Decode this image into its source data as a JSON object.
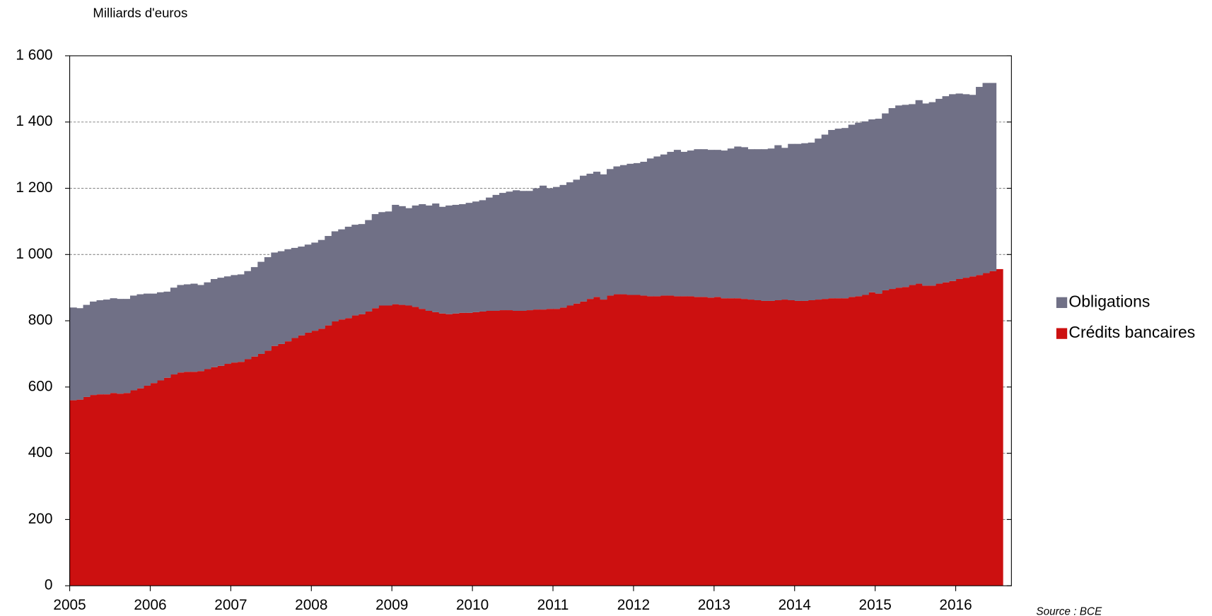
{
  "chart_data": {
    "type": "stacked-area",
    "y_label": "Milliards d'euros",
    "source": "Source : BCE",
    "legend": "right",
    "grid": true,
    "ylim": [
      0,
      1600
    ],
    "yticks": [
      0,
      200,
      400,
      600,
      800,
      {
        "value": 1000,
        "label": "1 000"
      },
      {
        "value": 1200,
        "label": "1 200"
      },
      {
        "value": 1400,
        "label": "1 400"
      },
      {
        "value": 1600,
        "label": "1 600"
      }
    ],
    "categories": [
      "2005",
      null,
      null,
      null,
      null,
      null,
      null,
      null,
      null,
      null,
      null,
      null,
      "2006",
      null,
      null,
      null,
      null,
      null,
      null,
      null,
      null,
      null,
      null,
      null,
      "2007",
      null,
      null,
      null,
      null,
      null,
      null,
      null,
      null,
      null,
      null,
      null,
      "2008",
      null,
      null,
      null,
      null,
      null,
      null,
      null,
      null,
      null,
      null,
      null,
      "2009",
      null,
      null,
      null,
      null,
      null,
      null,
      null,
      null,
      null,
      null,
      null,
      "2010",
      null,
      null,
      null,
      null,
      null,
      null,
      null,
      null,
      null,
      null,
      null,
      "2011",
      null,
      null,
      null,
      null,
      null,
      null,
      null,
      null,
      null,
      null,
      null,
      "2012",
      null,
      null,
      null,
      null,
      null,
      null,
      null,
      null,
      null,
      null,
      null,
      "2013",
      null,
      null,
      null,
      null,
      null,
      null,
      null,
      null,
      null,
      null,
      null,
      "2014",
      null,
      null,
      null,
      null,
      null,
      null,
      null,
      null,
      null,
      null,
      null,
      "2015",
      null,
      null,
      null,
      null,
      null,
      null,
      null,
      null,
      null,
      null,
      null,
      "2016",
      null,
      null,
      null,
      null,
      null,
      null
    ],
    "series": [
      {
        "name": "Crédits bancaires",
        "color": "#cc1010",
        "values": [
          560,
          562,
          570,
          576,
          578,
          578,
          582,
          580,
          582,
          590,
          596,
          604,
          612,
          620,
          628,
          638,
          644,
          646,
          646,
          648,
          654,
          660,
          664,
          670,
          674,
          676,
          684,
          692,
          700,
          710,
          724,
          730,
          738,
          748,
          756,
          764,
          770,
          776,
          786,
          798,
          804,
          808,
          816,
          820,
          828,
          838,
          846,
          846,
          850,
          848,
          846,
          842,
          836,
          830,
          826,
          822,
          820,
          822,
          824,
          824,
          826,
          828,
          830,
          830,
          832,
          832,
          830,
          830,
          832,
          834,
          834,
          836,
          836,
          840,
          846,
          852,
          858,
          866,
          872,
          864,
          876,
          880,
          880,
          878,
          878,
          876,
          874,
          874,
          876,
          876,
          874,
          874,
          874,
          872,
          872,
          870,
          872,
          868,
          868,
          868,
          866,
          864,
          862,
          860,
          860,
          862,
          864,
          862,
          860,
          860,
          862,
          864,
          866,
          868,
          868,
          868,
          872,
          874,
          878,
          886,
          882,
          892,
          896,
          900,
          902,
          908,
          912,
          906,
          906,
          912,
          916,
          920,
          926,
          930,
          934,
          938,
          944,
          950,
          956
        ]
      },
      {
        "name": "Obligations",
        "color": "#707086",
        "values": [
          280,
          276,
          278,
          282,
          284,
          286,
          286,
          286,
          284,
          286,
          284,
          278,
          270,
          266,
          260,
          262,
          264,
          264,
          266,
          260,
          262,
          266,
          266,
          264,
          264,
          264,
          266,
          270,
          278,
          282,
          282,
          280,
          278,
          272,
          268,
          266,
          266,
          268,
          270,
          272,
          272,
          276,
          274,
          272,
          276,
          284,
          282,
          284,
          300,
          298,
          294,
          306,
          316,
          318,
          328,
          322,
          328,
          328,
          328,
          332,
          334,
          336,
          342,
          350,
          354,
          358,
          364,
          362,
          360,
          366,
          374,
          364,
          368,
          370,
          372,
          374,
          380,
          378,
          378,
          378,
          382,
          386,
          390,
          396,
          398,
          404,
          416,
          422,
          426,
          434,
          442,
          436,
          440,
          446,
          446,
          446,
          444,
          446,
          452,
          458,
          458,
          454,
          456,
          458,
          460,
          468,
          458,
          472,
          474,
          476,
          476,
          486,
          496,
          508,
          512,
          514,
          520,
          524,
          524,
          522,
          528,
          534,
          546,
          550,
          550,
          546,
          554,
          550,
          554,
          558,
          562,
          564,
          560,
          554,
          548,
          568,
          574,
          568,
          null
        ]
      }
    ]
  }
}
